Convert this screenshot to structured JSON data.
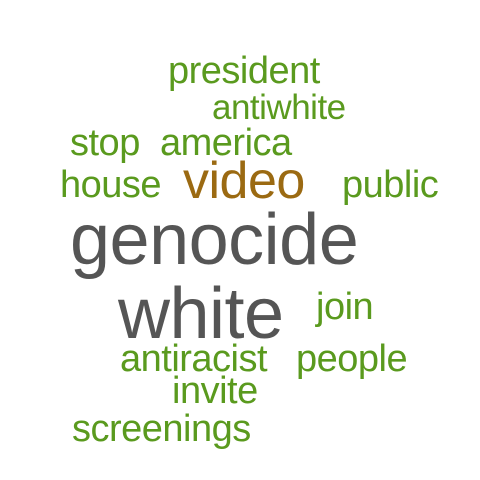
{
  "colors": {
    "green": "#5a9a1e",
    "gray": "#555555",
    "brown": "#9b6a12",
    "background": "#ffffff"
  },
  "words": {
    "president": "president",
    "antiwhite": "antiwhite",
    "stop": "stop",
    "america": "america",
    "house": "house",
    "video": "video",
    "public": "public",
    "genocide": "genocide",
    "white": "white",
    "join": "join",
    "antiracist": "antiracist",
    "people": "people",
    "invite": "invite",
    "screenings": "screenings"
  }
}
